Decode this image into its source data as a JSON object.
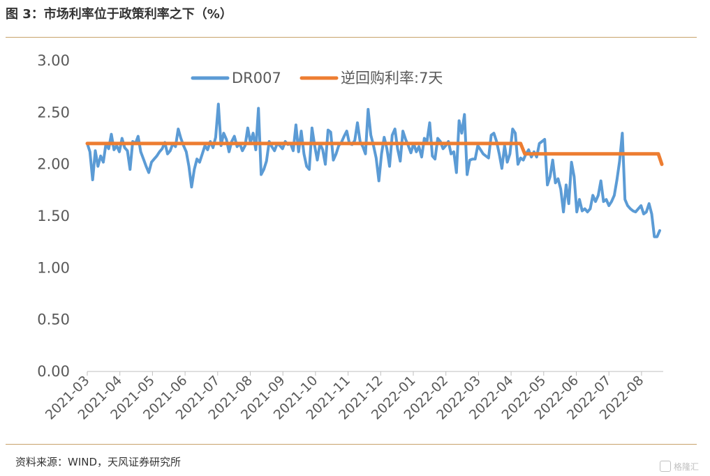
{
  "header": {
    "title": "图 3：市场利率位于政策利率之下（%）"
  },
  "footer": {
    "source": "资料来源：WIND，天风证券研究所",
    "watermark": "格隆汇"
  },
  "chart_data": {
    "type": "line",
    "ylim": [
      0,
      3
    ],
    "yticks": [
      "0.00",
      "0.50",
      "1.00",
      "1.50",
      "2.00",
      "2.50",
      "3.00"
    ],
    "ytick_values": [
      0,
      0.5,
      1,
      1.5,
      2,
      2.5,
      3
    ],
    "x_start": "2021-03",
    "x_end": "2022-08",
    "xticks": [
      "2021-03",
      "2021-04",
      "2021-05",
      "2021-06",
      "2021-07",
      "2021-08",
      "2021-09",
      "2021-10",
      "2021-11",
      "2021-12",
      "2022-01",
      "2022-02",
      "2022-03",
      "2022-04",
      "2022-05",
      "2022-06",
      "2022-07",
      "2022-08"
    ],
    "legend_position": "top-center",
    "grid": false,
    "series": [
      {
        "name": "DR007",
        "color": "#5B9BD5",
        "values": [
          2.2,
          2.12,
          1.85,
          2.13,
          1.98,
          2.08,
          2.02,
          2.2,
          2.15,
          2.29,
          2.14,
          2.18,
          2.12,
          2.25,
          2.16,
          2.13,
          1.95,
          2.22,
          2.2,
          2.27,
          2.12,
          2.05,
          1.98,
          1.92,
          2.02,
          2.05,
          2.08,
          2.12,
          2.15,
          2.21,
          2.1,
          2.13,
          2.2,
          2.17,
          2.34,
          2.25,
          2.18,
          2.12,
          1.98,
          1.78,
          1.95,
          2.05,
          2.02,
          2.1,
          2.18,
          2.14,
          2.22,
          2.16,
          2.26,
          2.58,
          2.18,
          2.3,
          2.24,
          2.12,
          2.22,
          2.27,
          2.17,
          2.2,
          2.13,
          2.18,
          2.35,
          2.21,
          2.3,
          2.14,
          2.54,
          1.9,
          1.95,
          2.03,
          2.22,
          2.17,
          2.13,
          2.2,
          2.18,
          2.15,
          2.22,
          2.19,
          2.2,
          2.13,
          2.38,
          2.12,
          2.32,
          2.1,
          1.98,
          1.95,
          2.35,
          2.18,
          2.04,
          2.2,
          2.14,
          2.0,
          2.33,
          2.31,
          2.04,
          2.1,
          2.18,
          2.21,
          2.27,
          2.32,
          2.2,
          2.19,
          2.23,
          2.4,
          2.22,
          2.17,
          2.1,
          2.53,
          2.28,
          2.18,
          2.06,
          1.84,
          2.1,
          2.26,
          2.15,
          1.98,
          2.28,
          2.34,
          2.15,
          2.03,
          2.32,
          2.24,
          2.18,
          2.11,
          2.2,
          2.12,
          2.17,
          2.07,
          2.25,
          2.22,
          2.4,
          2.08,
          2.05,
          2.25,
          2.22,
          2.15,
          2.18,
          2.22,
          2.1,
          2.12,
          1.92,
          2.42,
          2.3,
          2.48,
          1.9,
          2.04,
          2.05,
          2.05,
          2.18,
          2.14,
          2.1,
          2.08,
          2.06,
          2.28,
          2.3,
          2.22,
          2.1,
          1.96,
          2.18,
          2.02,
          2.1,
          2.34,
          2.3,
          2.0,
          2.06,
          2.04,
          2.1,
          2.14,
          2.07,
          2.12,
          2.07,
          2.2,
          2.22,
          2.24,
          1.8,
          1.88,
          2.04,
          1.82,
          1.86,
          1.76,
          1.54,
          1.8,
          1.62,
          2.02,
          1.88,
          1.54,
          1.66,
          1.55,
          1.57,
          1.54,
          1.57,
          1.7,
          1.64,
          1.7,
          1.84,
          1.64,
          1.66,
          1.6,
          1.64,
          1.7,
          1.85,
          2.03,
          2.3,
          1.66,
          1.6,
          1.57,
          1.55,
          1.54,
          1.57,
          1.6,
          1.52,
          1.54,
          1.62,
          1.52,
          1.3,
          1.3,
          1.36
        ]
      },
      {
        "name": "逆回购利率:7天",
        "color": "#ED7D31",
        "step_change_index": 162,
        "before_value": 2.2,
        "after_value": 2.1,
        "final_value": 2.0
      }
    ]
  }
}
